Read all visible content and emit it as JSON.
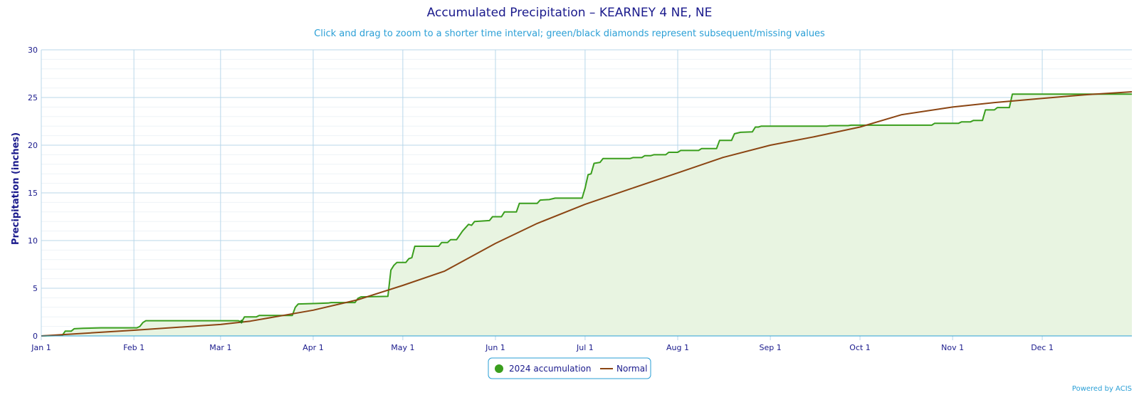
{
  "chart_data": {
    "type": "area",
    "title": "Accumulated Precipitation – KEARNEY 4 NE, NE",
    "subtitle": "Click and drag to zoom to a shorter time interval; green/black diamonds represent subsequent/missing values",
    "ylabel": "Precipitation (inches)",
    "xlabel": "",
    "ylim": [
      0,
      30
    ],
    "yticks": [
      0,
      5,
      10,
      15,
      20,
      25,
      30
    ],
    "xlim": [
      0,
      365
    ],
    "xtick_labels": [
      "Jan 1",
      "Feb 1",
      "Mar 1",
      "Apr 1",
      "May 1",
      "Jun 1",
      "Jul 1",
      "Aug 1",
      "Sep 1",
      "Oct 1",
      "Nov 1",
      "Dec 1"
    ],
    "xtick_days": [
      0,
      31,
      60,
      91,
      121,
      152,
      182,
      213,
      244,
      274,
      305,
      335
    ],
    "grid": true,
    "legend_position": "bottom-center",
    "series": [
      {
        "name": "2024 accumulation",
        "color": "#3a9e1d",
        "fill": "#e8f4e1",
        "points": [
          [
            0,
            0
          ],
          [
            7,
            0.05
          ],
          [
            8,
            0.5
          ],
          [
            10,
            0.5
          ],
          [
            11,
            0.75
          ],
          [
            14,
            0.8
          ],
          [
            20,
            0.85
          ],
          [
            32,
            0.85
          ],
          [
            33,
            1.0
          ],
          [
            34,
            1.4
          ],
          [
            35,
            1.6
          ],
          [
            66,
            1.6
          ],
          [
            67,
            1.45
          ],
          [
            68,
            2.0
          ],
          [
            72,
            2.0
          ],
          [
            73,
            2.15
          ],
          [
            84,
            2.15
          ],
          [
            85,
            3.0
          ],
          [
            86,
            3.35
          ],
          [
            92,
            3.4
          ],
          [
            96,
            3.45
          ],
          [
            97,
            3.5
          ],
          [
            105,
            3.5
          ],
          [
            106,
            3.95
          ],
          [
            107,
            4.1
          ],
          [
            116,
            4.15
          ],
          [
            117,
            6.9
          ],
          [
            118,
            7.4
          ],
          [
            119,
            7.7
          ],
          [
            122,
            7.7
          ],
          [
            123,
            8.1
          ],
          [
            124,
            8.2
          ],
          [
            125,
            9.4
          ],
          [
            133,
            9.4
          ],
          [
            134,
            9.8
          ],
          [
            136,
            9.8
          ],
          [
            137,
            10.1
          ],
          [
            139,
            10.1
          ],
          [
            141,
            11.0
          ],
          [
            143,
            11.7
          ],
          [
            144,
            11.6
          ],
          [
            145,
            12.0
          ],
          [
            150,
            12.1
          ],
          [
            151,
            12.5
          ],
          [
            154,
            12.5
          ],
          [
            155,
            13.0
          ],
          [
            159,
            13.0
          ],
          [
            160,
            13.9
          ],
          [
            166,
            13.9
          ],
          [
            167,
            14.25
          ],
          [
            170,
            14.3
          ],
          [
            172,
            14.45
          ],
          [
            181,
            14.45
          ],
          [
            182,
            15.5
          ],
          [
            183,
            16.9
          ],
          [
            184,
            17.0
          ],
          [
            185,
            18.1
          ],
          [
            187,
            18.2
          ],
          [
            188,
            18.6
          ],
          [
            197,
            18.6
          ],
          [
            198,
            18.7
          ],
          [
            201,
            18.7
          ],
          [
            202,
            18.9
          ],
          [
            204,
            18.9
          ],
          [
            205,
            19.0
          ],
          [
            209,
            19.0
          ],
          [
            210,
            19.25
          ],
          [
            213,
            19.25
          ],
          [
            214,
            19.45
          ],
          [
            220,
            19.45
          ],
          [
            221,
            19.65
          ],
          [
            226,
            19.65
          ],
          [
            227,
            20.5
          ],
          [
            231,
            20.5
          ],
          [
            232,
            21.2
          ],
          [
            234,
            21.35
          ],
          [
            238,
            21.4
          ],
          [
            239,
            21.9
          ],
          [
            240,
            21.9
          ],
          [
            241,
            22.0
          ],
          [
            263,
            22.0
          ],
          [
            264,
            22.05
          ],
          [
            270,
            22.05
          ],
          [
            271,
            22.1
          ],
          [
            298,
            22.1
          ],
          [
            299,
            22.3
          ],
          [
            307,
            22.3
          ],
          [
            308,
            22.45
          ],
          [
            311,
            22.45
          ],
          [
            312,
            22.6
          ],
          [
            315,
            22.6
          ],
          [
            316,
            23.7
          ],
          [
            319,
            23.7
          ],
          [
            320,
            23.95
          ],
          [
            324,
            23.95
          ],
          [
            325,
            25.35
          ],
          [
            365,
            25.35
          ]
        ]
      },
      {
        "name": "Normal",
        "color": "#8b4513",
        "points": [
          [
            0,
            0
          ],
          [
            31,
            0.6
          ],
          [
            60,
            1.2
          ],
          [
            70,
            1.55
          ],
          [
            91,
            2.7
          ],
          [
            106,
            3.8
          ],
          [
            121,
            5.3
          ],
          [
            135,
            6.8
          ],
          [
            152,
            9.7
          ],
          [
            166,
            11.8
          ],
          [
            182,
            13.8
          ],
          [
            197,
            15.4
          ],
          [
            213,
            17.1
          ],
          [
            228,
            18.7
          ],
          [
            244,
            20.0
          ],
          [
            259,
            20.9
          ],
          [
            274,
            21.9
          ],
          [
            288,
            23.2
          ],
          [
            305,
            24.0
          ],
          [
            320,
            24.5
          ],
          [
            335,
            24.9
          ],
          [
            350,
            25.3
          ],
          [
            365,
            25.6
          ]
        ]
      }
    ]
  },
  "legend": {
    "items": [
      {
        "label": "2024 accumulation",
        "color": "#3a9e1d",
        "symbol": "circle"
      },
      {
        "label": "Normal",
        "color": "#8b4513",
        "symbol": "line"
      }
    ]
  },
  "credit": "Powered by ACIS"
}
